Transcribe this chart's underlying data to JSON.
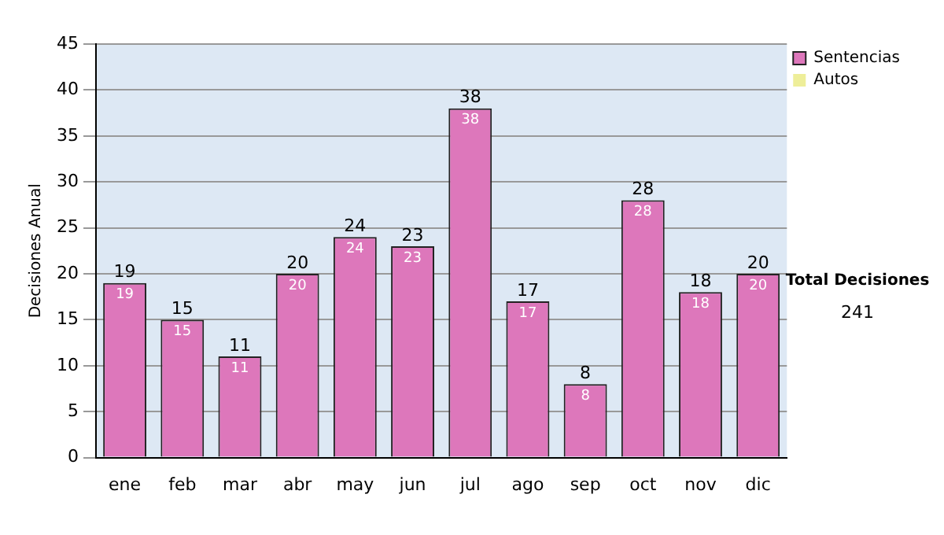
{
  "chart_data": {
    "type": "bar",
    "ylabel": "Decisiones Anual",
    "categories": [
      "ene",
      "feb",
      "mar",
      "abr",
      "may",
      "jun",
      "jul",
      "ago",
      "sep",
      "oct",
      "nov",
      "dic"
    ],
    "series": [
      {
        "name": "Sentencias",
        "color": "#dd77bb",
        "values": [
          19,
          15,
          11,
          20,
          24,
          23,
          38,
          17,
          8,
          28,
          18,
          20
        ],
        "value_labels": [
          "19",
          "15",
          "11",
          "20",
          "24",
          "23",
          "38",
          "17",
          "8",
          "28",
          "18",
          "20"
        ]
      },
      {
        "name": "Autos",
        "color": "#eeee99",
        "values": [
          0,
          0,
          0,
          0,
          0,
          0,
          0,
          0,
          0,
          0,
          0,
          0
        ]
      }
    ],
    "stacked": true,
    "totals": [
      "19",
      "15",
      "11",
      "20",
      "24",
      "23",
      "38",
      "17",
      "8",
      "28",
      "18",
      "20"
    ],
    "ylim": [
      0,
      45
    ],
    "yticks": [
      0,
      5,
      10,
      15,
      20,
      25,
      30,
      35,
      40,
      45
    ],
    "grid": "y",
    "legend": "right",
    "annotations": [
      "Total Decisiones",
      "241"
    ]
  }
}
